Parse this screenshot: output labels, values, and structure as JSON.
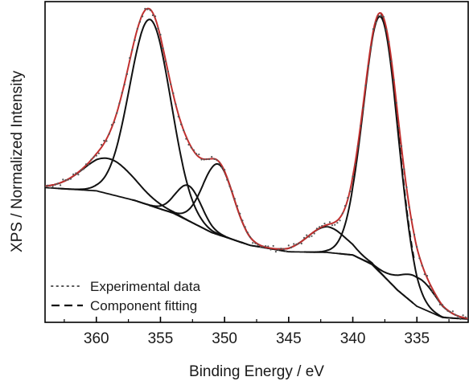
{
  "chart_data": {
    "type": "line",
    "xlabel": "Binding Energy / eV",
    "ylabel": "XPS / Normalized Intensity",
    "xlim": [
      364,
      331
    ],
    "ylim": [
      0,
      1
    ],
    "x_reversed": true,
    "x_ticks": [
      360,
      355,
      350,
      345,
      340,
      335
    ],
    "y_ticks_shown": false,
    "grid": false,
    "legend": {
      "placement": "bottom-left",
      "entries": [
        {
          "label": "Experimental data",
          "style": "dotted",
          "color": "#555555"
        },
        {
          "label": "Component fitting",
          "style": "dashed",
          "color": "#111111"
        }
      ]
    },
    "background": {
      "description_points": [
        [
          364,
          0.42
        ],
        [
          360,
          0.41
        ],
        [
          357,
          0.38
        ],
        [
          354,
          0.34
        ],
        [
          351,
          0.28
        ],
        [
          348,
          0.24
        ],
        [
          345,
          0.22
        ],
        [
          342,
          0.218
        ],
        [
          340,
          0.21
        ],
        [
          338.5,
          0.18
        ],
        [
          336.5,
          0.1
        ],
        [
          335,
          0.05
        ],
        [
          333,
          0.015
        ],
        [
          331,
          0.01
        ]
      ]
    },
    "peaks": [
      {
        "center": 355.8,
        "height": 0.58,
        "width": 1.6
      },
      {
        "center": 359.0,
        "height": 0.11,
        "width": 2.0
      },
      {
        "center": 352.8,
        "height": 0.11,
        "width": 1.0
      },
      {
        "center": 350.5,
        "height": 0.22,
        "width": 1.2
      },
      {
        "center": 342.0,
        "height": 0.08,
        "width": 1.5
      },
      {
        "center": 337.8,
        "height": 0.8,
        "width": 1.35
      },
      {
        "center": 334.9,
        "height": 0.09,
        "width": 1.4
      }
    ],
    "colors": {
      "envelope": "#c0302f",
      "components": "#111111",
      "experimental": "#555555",
      "frame": "#000000"
    }
  }
}
